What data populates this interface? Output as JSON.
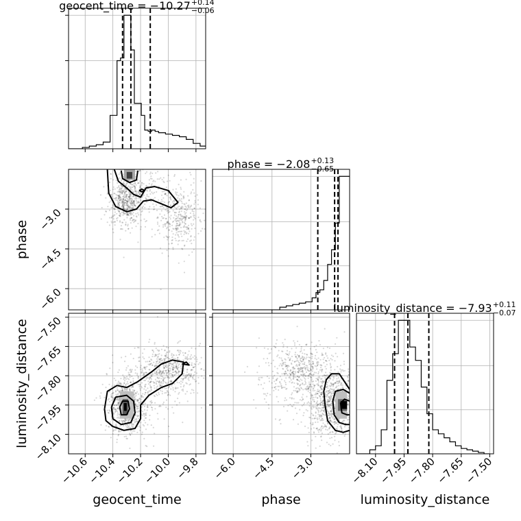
{
  "chart_data": {
    "type": "corner",
    "parameters": [
      "geocent_time",
      "phase",
      "luminosity_distance"
    ],
    "axis_labels": {
      "x": [
        "geocent_time",
        "phase",
        "luminosity_distance"
      ],
      "y": [
        "phase",
        "luminosity_distance"
      ]
    },
    "ranges": {
      "geocent_time": [
        -10.72,
        -9.73
      ],
      "phase": [
        -6.8,
        -1.5
      ],
      "luminosity_distance": [
        -8.2,
        -7.48
      ]
    },
    "ticks": {
      "geocent_time": [
        "-10.6",
        "-10.4",
        "-10.2",
        "-10.0",
        "-9.8"
      ],
      "phase": [
        "-6.0",
        "-4.5",
        "-3.0"
      ],
      "luminosity_distance": [
        "-8.10",
        "-7.95",
        "-7.80",
        "-7.65",
        "-7.50"
      ]
    },
    "titles": [
      {
        "param": "geocent_time",
        "prefix": "geocent_time = −10.27",
        "plus": "+0.14",
        "minus": "−0.06"
      },
      {
        "param": "phase",
        "prefix": "phase = −2.08",
        "plus": "+0.13",
        "minus": "−0.65"
      },
      {
        "param": "luminosity_distance",
        "prefix": "luminosity_distance = −7.93",
        "plus": "+0.11",
        "minus": "−0.07"
      }
    ],
    "quantiles": {
      "geocent_time": [
        -10.33,
        -10.27,
        -10.13
      ],
      "phase": [
        -2.73,
        -2.08,
        -1.95
      ],
      "luminosity_distance": [
        -8.0,
        -7.93,
        -7.82
      ]
    },
    "histograms": {
      "geocent_time": {
        "edges": [
          -10.72,
          -10.67,
          -10.62,
          -10.57,
          -10.52,
          -10.47,
          -10.42,
          -10.37,
          -10.345,
          -10.32,
          -10.295,
          -10.27,
          -10.245,
          -10.22,
          -10.195,
          -10.17,
          -10.145,
          -10.12,
          -10.095,
          -10.07,
          -10.02,
          -9.97,
          -9.92,
          -9.87,
          -9.82,
          -9.77,
          -9.73
        ],
        "counts": [
          0,
          0,
          1,
          2,
          3,
          5,
          25,
          66,
          68,
          100,
          100,
          74,
          34,
          34,
          25,
          14,
          13,
          14,
          13,
          12,
          11,
          10,
          9,
          7,
          4,
          2
        ]
      },
      "phase": {
        "edges": [
          -6.8,
          -4.2,
          -3.95,
          -3.7,
          -3.45,
          -3.2,
          -2.95,
          -2.8,
          -2.65,
          -2.5,
          -2.35,
          -2.2,
          -2.05,
          -1.9,
          -1.75,
          -1.5
        ],
        "counts": [
          0,
          2,
          3,
          4,
          5,
          6,
          9,
          13,
          15,
          22,
          34,
          45,
          65,
          100,
          100
        ]
      },
      "luminosity_distance": {
        "edges": [
          -8.2,
          -8.13,
          -8.1,
          -8.07,
          -8.04,
          -8.01,
          -7.98,
          -7.95,
          -7.92,
          -7.89,
          -7.86,
          -7.83,
          -7.8,
          -7.77,
          -7.74,
          -7.71,
          -7.68,
          -7.65,
          -7.62,
          -7.59,
          -7.56,
          -7.53,
          -7.5
        ],
        "counts": [
          0,
          3,
          6,
          18,
          55,
          75,
          100,
          100,
          80,
          70,
          50,
          30,
          18,
          15,
          12,
          9,
          6,
          4,
          3,
          2,
          1,
          0
        ]
      }
    },
    "density_blocks": [
      {
        "xparam": "geocent_time",
        "yparam": "phase",
        "x": [
          -10.32,
          -10.24
        ],
        "y": [
          -1.9,
          -1.5
        ],
        "level": 0.35
      },
      {
        "xparam": "geocent_time",
        "yparam": "phase",
        "x": [
          -10.3,
          -10.26
        ],
        "y": [
          -1.85,
          -1.6
        ],
        "level": 0.75
      },
      {
        "xparam": "geocent_time",
        "yparam": "luminosity_distance",
        "x": [
          -10.35,
          -10.25
        ],
        "y": [
          -8.02,
          -7.88
        ],
        "level": 0.25
      },
      {
        "xparam": "geocent_time",
        "yparam": "luminosity_distance",
        "x": [
          -10.33,
          -10.29
        ],
        "y": [
          -8.0,
          -7.92
        ],
        "level": 0.65
      },
      {
        "xparam": "geocent_time",
        "yparam": "luminosity_distance",
        "x": [
          -10.32,
          -10.3
        ],
        "y": [
          -7.98,
          -7.94
        ],
        "level": 1.0
      },
      {
        "xparam": "phase",
        "yparam": "luminosity_distance",
        "x": [
          -2.05,
          -1.6
        ],
        "y": [
          -8.02,
          -7.88
        ],
        "level": 0.25
      },
      {
        "xparam": "phase",
        "yparam": "luminosity_distance",
        "x": [
          -1.95,
          -1.6
        ],
        "y": [
          -7.98,
          -7.92
        ],
        "level": 0.6
      },
      {
        "xparam": "phase",
        "yparam": "luminosity_distance",
        "x": [
          -1.85,
          -1.6
        ],
        "y": [
          -7.97,
          -7.93
        ],
        "level": 1.0
      }
    ],
    "contours": [
      {
        "xparam": "geocent_time",
        "yparam": "phase",
        "points": [
          [
            -10.39,
            -1.5
          ],
          [
            -10.36,
            -1.95
          ],
          [
            -10.3,
            -2.2
          ],
          [
            -10.25,
            -2.45
          ],
          [
            -10.2,
            -2.55
          ],
          [
            -10.16,
            -2.2
          ],
          [
            -10.1,
            -2.15
          ],
          [
            -10.0,
            -2.3
          ],
          [
            -9.93,
            -2.75
          ],
          [
            -9.98,
            -2.95
          ],
          [
            -10.05,
            -2.8
          ],
          [
            -10.12,
            -2.65
          ],
          [
            -10.18,
            -2.7
          ],
          [
            -10.23,
            -3.0
          ],
          [
            -10.3,
            -3.1
          ],
          [
            -10.38,
            -2.9
          ],
          [
            -10.43,
            -2.4
          ],
          [
            -10.44,
            -1.5
          ]
        ]
      },
      {
        "xparam": "geocent_time",
        "yparam": "phase",
        "points": [
          [
            -10.34,
            -1.55
          ],
          [
            -10.33,
            -1.85
          ],
          [
            -10.28,
            -2.0
          ],
          [
            -10.23,
            -1.9
          ],
          [
            -10.22,
            -1.55
          ]
        ]
      },
      {
        "xparam": "geocent_time",
        "yparam": "phase",
        "points": [
          [
            -10.21,
            -2.3
          ],
          [
            -10.19,
            -2.25
          ],
          [
            -10.17,
            -2.3
          ],
          [
            -10.19,
            -2.35
          ],
          [
            -10.21,
            -2.3
          ]
        ]
      },
      {
        "xparam": "geocent_time",
        "yparam": "luminosity_distance",
        "points": [
          [
            -10.46,
            -7.97
          ],
          [
            -10.44,
            -7.88
          ],
          [
            -10.37,
            -7.85
          ],
          [
            -10.3,
            -7.86
          ],
          [
            -10.22,
            -7.83
          ],
          [
            -10.12,
            -7.78
          ],
          [
            -10.05,
            -7.74
          ],
          [
            -9.97,
            -7.72
          ],
          [
            -9.89,
            -7.73
          ],
          [
            -9.9,
            -7.79
          ],
          [
            -9.97,
            -7.84
          ],
          [
            -10.05,
            -7.86
          ],
          [
            -10.14,
            -7.9
          ],
          [
            -10.2,
            -7.95
          ],
          [
            -10.2,
            -8.02
          ],
          [
            -10.24,
            -8.07
          ],
          [
            -10.32,
            -8.08
          ],
          [
            -10.4,
            -8.06
          ],
          [
            -10.45,
            -8.03
          ],
          [
            -10.46,
            -7.97
          ]
        ]
      },
      {
        "xparam": "geocent_time",
        "yparam": "luminosity_distance",
        "points": [
          [
            -10.41,
            -7.96
          ],
          [
            -10.38,
            -7.91
          ],
          [
            -10.3,
            -7.9
          ],
          [
            -10.25,
            -7.93
          ],
          [
            -10.24,
            -7.99
          ],
          [
            -10.27,
            -8.04
          ],
          [
            -10.34,
            -8.05
          ],
          [
            -10.4,
            -8.02
          ],
          [
            -10.41,
            -7.96
          ]
        ]
      },
      {
        "xparam": "geocent_time",
        "yparam": "luminosity_distance",
        "points": [
          [
            -10.35,
            -7.96
          ],
          [
            -10.33,
            -7.93
          ],
          [
            -10.29,
            -7.93
          ],
          [
            -10.28,
            -7.97
          ],
          [
            -10.3,
            -8.0
          ],
          [
            -10.34,
            -8.0
          ],
          [
            -10.35,
            -7.96
          ]
        ]
      },
      {
        "xparam": "geocent_time",
        "yparam": "luminosity_distance",
        "points": [
          [
            -9.9,
            -7.74
          ],
          [
            -9.87,
            -7.73
          ],
          [
            -9.85,
            -7.745
          ],
          [
            -9.9,
            -7.74
          ]
        ]
      },
      {
        "xparam": "phase",
        "yparam": "luminosity_distance",
        "points": [
          [
            -1.5,
            -7.87
          ],
          [
            -1.7,
            -7.83
          ],
          [
            -1.9,
            -7.79
          ],
          [
            -2.2,
            -7.79
          ],
          [
            -2.4,
            -7.82
          ],
          [
            -2.5,
            -7.88
          ],
          [
            -2.45,
            -7.95
          ],
          [
            -2.35,
            -8.03
          ],
          [
            -2.05,
            -8.08
          ],
          [
            -1.75,
            -8.09
          ],
          [
            -1.5,
            -8.08
          ]
        ]
      },
      {
        "xparam": "phase",
        "yparam": "luminosity_distance",
        "points": [
          [
            -1.5,
            -7.89
          ],
          [
            -1.75,
            -7.87
          ],
          [
            -2.05,
            -7.88
          ],
          [
            -2.15,
            -7.93
          ],
          [
            -2.1,
            -8.0
          ],
          [
            -1.9,
            -8.04
          ],
          [
            -1.65,
            -8.05
          ],
          [
            -1.5,
            -8.05
          ]
        ]
      },
      {
        "xparam": "phase",
        "yparam": "luminosity_distance",
        "points": [
          [
            -1.5,
            -7.93
          ],
          [
            -1.7,
            -7.92
          ],
          [
            -1.85,
            -7.94
          ],
          [
            -1.8,
            -7.99
          ],
          [
            -1.6,
            -8.0
          ],
          [
            -1.5,
            -8.0
          ]
        ]
      }
    ],
    "scatter": [
      {
        "xparam": "geocent_time",
        "yparam": "phase",
        "count": 1100,
        "clusters": [
          {
            "cx": -10.3,
            "cy": -2.6,
            "sx": 0.06,
            "sy": 0.55,
            "w": 0.55
          },
          {
            "cx": -9.93,
            "cy": -3.3,
            "sx": 0.08,
            "sy": 0.65,
            "w": 0.35
          },
          {
            "cx": -10.15,
            "cy": -2.3,
            "sx": 0.1,
            "sy": 0.4,
            "w": 0.1
          }
        ]
      },
      {
        "xparam": "geocent_time",
        "yparam": "luminosity_distance",
        "count": 1400,
        "clusters": [
          {
            "cx": -10.3,
            "cy": -7.96,
            "sx": 0.07,
            "sy": 0.07,
            "w": 0.5
          },
          {
            "cx": -10.0,
            "cy": -7.77,
            "sx": 0.12,
            "sy": 0.06,
            "w": 0.4
          },
          {
            "cx": -10.15,
            "cy": -7.88,
            "sx": 0.15,
            "sy": 0.1,
            "w": 0.1
          }
        ]
      },
      {
        "xparam": "phase",
        "yparam": "luminosity_distance",
        "count": 1400,
        "clusters": [
          {
            "cx": -2.1,
            "cy": -7.95,
            "sx": 0.5,
            "sy": 0.08,
            "w": 0.5
          },
          {
            "cx": -3.4,
            "cy": -7.78,
            "sx": 0.7,
            "sy": 0.08,
            "w": 0.4
          },
          {
            "cx": -2.6,
            "cy": -7.9,
            "sx": 0.8,
            "sy": 0.12,
            "w": 0.1
          }
        ]
      }
    ]
  }
}
